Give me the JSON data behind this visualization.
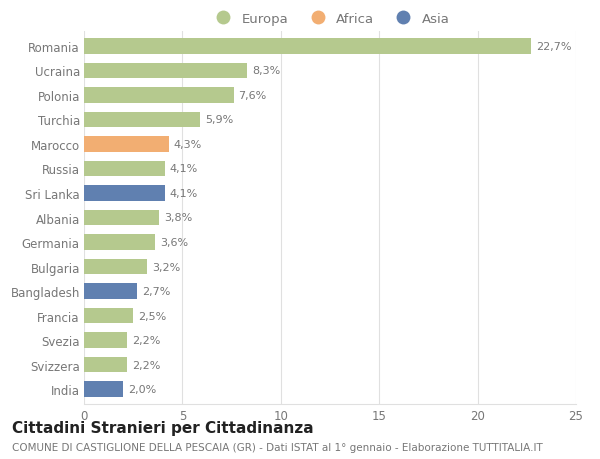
{
  "categories": [
    "Romania",
    "Ucraina",
    "Polonia",
    "Turchia",
    "Marocco",
    "Russia",
    "Sri Lanka",
    "Albania",
    "Germania",
    "Bulgaria",
    "Bangladesh",
    "Francia",
    "Svezia",
    "Svizzera",
    "India"
  ],
  "values": [
    22.7,
    8.3,
    7.6,
    5.9,
    4.3,
    4.1,
    4.1,
    3.8,
    3.6,
    3.2,
    2.7,
    2.5,
    2.2,
    2.2,
    2.0
  ],
  "labels": [
    "22,7%",
    "8,3%",
    "7,6%",
    "5,9%",
    "4,3%",
    "4,1%",
    "4,1%",
    "3,8%",
    "3,6%",
    "3,2%",
    "2,7%",
    "2,5%",
    "2,2%",
    "2,2%",
    "2,0%"
  ],
  "continents": [
    "Europa",
    "Europa",
    "Europa",
    "Europa",
    "Africa",
    "Europa",
    "Asia",
    "Europa",
    "Europa",
    "Europa",
    "Asia",
    "Europa",
    "Europa",
    "Europa",
    "Asia"
  ],
  "colors": {
    "Europa": "#b5c98e",
    "Africa": "#f2ae72",
    "Asia": "#6080b0"
  },
  "xlim": [
    0,
    25
  ],
  "xticks": [
    0,
    5,
    10,
    15,
    20,
    25
  ],
  "title": "Cittadini Stranieri per Cittadinanza",
  "subtitle": "COMUNE DI CASTIGLIONE DELLA PESCAIA (GR) - Dati ISTAT al 1° gennaio - Elaborazione TUTTITALIA.IT",
  "background_color": "#ffffff",
  "grid_color": "#e0e0e0",
  "bar_height": 0.62,
  "title_fontsize": 11,
  "subtitle_fontsize": 7.5,
  "label_fontsize": 8,
  "tick_fontsize": 8.5,
  "legend_fontsize": 9.5,
  "text_color": "#777777",
  "title_color": "#222222"
}
